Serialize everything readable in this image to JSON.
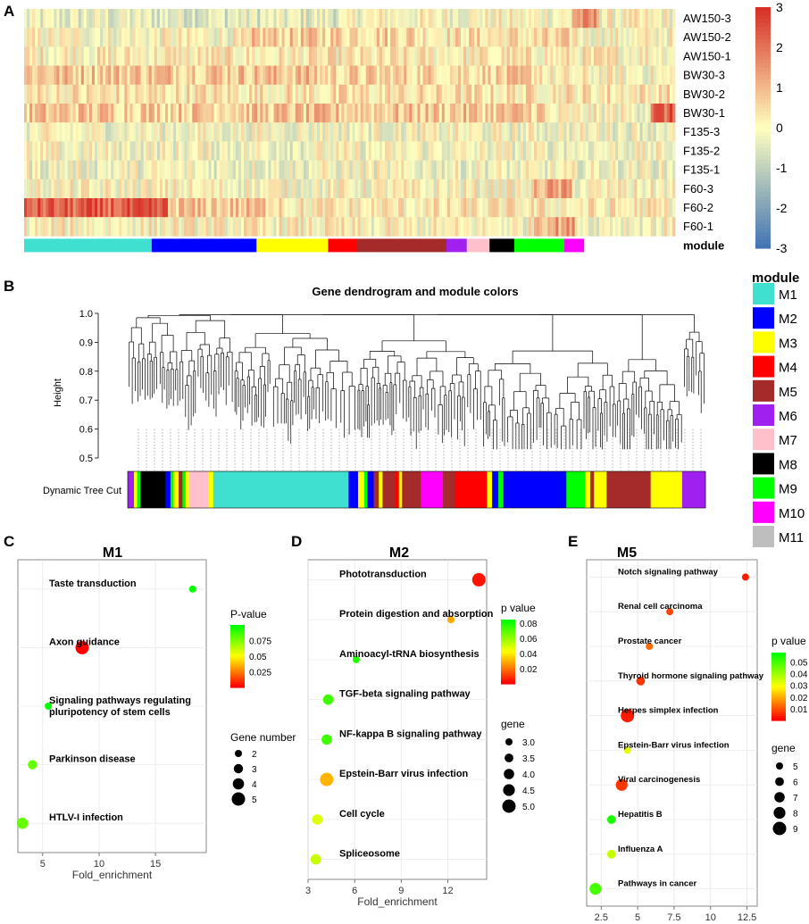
{
  "panel_labels": [
    "A",
    "B",
    "C",
    "D",
    "E"
  ],
  "colors": {
    "M1": "#40E0D0",
    "M2": "#0000FF",
    "M3": "#FFFF00",
    "M4": "#FF0000",
    "M5": "#A52A2A",
    "M6": "#A020F0",
    "M7": "#FFC0CB",
    "M8": "#000000",
    "M9": "#00FF00",
    "M10": "#FF00FF",
    "M11": "#BEBEBE",
    "heat_low": "#4575b4",
    "heat_mid": "#ffffbf",
    "heat_high": "#d73027",
    "pv_high": "#00FF00",
    "pv_low": "#FF0000"
  },
  "chart_data": [
    {
      "id": "A",
      "type": "heatmap",
      "rows": [
        "AW150-3",
        "AW150-2",
        "AW150-1",
        "BW30-3",
        "BW30-2",
        "BW30-1",
        "F135-3",
        "F135-2",
        "F135-1",
        "F60-3",
        "F60-2",
        "F60-1"
      ],
      "module_row_label": "module",
      "module_bar": [
        {
          "module": "M1",
          "share": 0.196
        },
        {
          "module": "M2",
          "share": 0.161
        },
        {
          "module": "M3",
          "share": 0.11
        },
        {
          "module": "M4",
          "share": 0.044
        },
        {
          "module": "M5",
          "share": 0.138
        },
        {
          "module": "M6",
          "share": 0.031
        },
        {
          "module": "M7",
          "share": 0.035
        },
        {
          "module": "M8",
          "share": 0.038
        },
        {
          "module": "M9",
          "share": 0.077
        },
        {
          "module": "M10",
          "share": 0.03
        }
      ],
      "colorbar_ticks": [
        "3",
        "2",
        "1",
        "0",
        "-1",
        "-2",
        "-3"
      ],
      "colorbar_range": [
        -3,
        3
      ]
    },
    {
      "id": "B",
      "type": "dendrogram",
      "title": "Gene dendrogram and module colors",
      "ylabel": "Height",
      "yticks": [
        "1.0",
        "0.9",
        "0.8",
        "0.7",
        "0.6",
        "0.5"
      ],
      "ylim": [
        0.5,
        1.0
      ],
      "color_row_label": "Dynamic Tree Cut",
      "legend_title": "module",
      "legend": [
        "M1",
        "M2",
        "M3",
        "M4",
        "M5",
        "M6",
        "M7",
        "M8",
        "M9",
        "M10",
        "M11"
      ],
      "color_bar": [
        {
          "module": "M6",
          "share": 0.01
        },
        {
          "module": "M3",
          "share": 0.005
        },
        {
          "module": "M9",
          "share": 0.005
        },
        {
          "module": "M8",
          "share": 0.04
        },
        {
          "module": "M2",
          "share": 0.008
        },
        {
          "module": "M9",
          "share": 0.005
        },
        {
          "module": "M3",
          "share": 0.008
        },
        {
          "module": "M5",
          "share": 0.006
        },
        {
          "module": "M9",
          "share": 0.005
        },
        {
          "module": "M3",
          "share": 0.006
        },
        {
          "module": "M7",
          "share": 0.03
        },
        {
          "module": "M3",
          "share": 0.008
        },
        {
          "module": "M1",
          "share": 0.215
        },
        {
          "module": "M2",
          "share": 0.015
        },
        {
          "module": "M3",
          "share": 0.01
        },
        {
          "module": "M9",
          "share": 0.005
        },
        {
          "module": "M2",
          "share": 0.01
        },
        {
          "module": "M5",
          "share": 0.008
        },
        {
          "module": "M3",
          "share": 0.006
        },
        {
          "module": "M5",
          "share": 0.02
        },
        {
          "module": "M4",
          "share": 0.006
        },
        {
          "module": "M3",
          "share": 0.005
        },
        {
          "module": "M5",
          "share": 0.03
        },
        {
          "module": "M10",
          "share": 0.035
        },
        {
          "module": "M5",
          "share": 0.02
        },
        {
          "module": "M4",
          "share": 0.05
        },
        {
          "module": "M3",
          "share": 0.008
        },
        {
          "module": "M2",
          "share": 0.01
        },
        {
          "module": "M9",
          "share": 0.008
        },
        {
          "module": "M2",
          "share": 0.1
        },
        {
          "module": "M9",
          "share": 0.03
        },
        {
          "module": "M3",
          "share": 0.008
        },
        {
          "module": "M5",
          "share": 0.006
        },
        {
          "module": "M3",
          "share": 0.02
        },
        {
          "module": "M5",
          "share": 0.07
        },
        {
          "module": "M3",
          "share": 0.05
        },
        {
          "module": "M6",
          "share": 0.037
        }
      ]
    },
    {
      "id": "C",
      "type": "scatter",
      "title": "M1",
      "xlabel": "Fold_enrichment",
      "xlim": [
        2.8,
        19.5
      ],
      "xticks": [
        5,
        10,
        15
      ],
      "terms": [
        "Taste transduction",
        "Axon guidance",
        "Signaling pathways regulating pluripotency of stem cells",
        "Parkinson disease",
        "HTLV-I infection"
      ],
      "fold": [
        18.3,
        8.5,
        5.5,
        4.1,
        3.2
      ],
      "pvalue": [
        0.1,
        0.0,
        0.1,
        0.08,
        0.08
      ],
      "gene": [
        2,
        5,
        2,
        3,
        4
      ],
      "color_title": "P-value",
      "color_ticks": [
        0.025,
        0.05,
        0.075
      ],
      "color_range": [
        0.0,
        0.1
      ],
      "size_title": "Gene number",
      "size_ticks": [
        2,
        3,
        4,
        5
      ]
    },
    {
      "id": "D",
      "type": "scatter",
      "title": "M2",
      "xlabel": "Fold_enrichment",
      "xlim": [
        3,
        14.5
      ],
      "xticks": [
        3,
        6,
        9,
        12
      ],
      "terms": [
        "Phototransduction",
        "Protein digestion and absorption",
        "Aminoacyl-tRNA biosynthesis",
        "TGF-beta signaling pathway",
        "NF-kappa B signaling pathway",
        "Epstein-Barr virus infection",
        "Cell cycle",
        "Spliceosome"
      ],
      "fold": [
        14.0,
        12.2,
        6.1,
        4.3,
        4.2,
        4.2,
        3.6,
        3.5
      ],
      "pvalue": [
        0.003,
        0.028,
        0.08,
        0.075,
        0.075,
        0.03,
        0.048,
        0.052
      ],
      "gene": [
        5,
        3,
        3,
        4,
        4,
        5,
        4,
        4
      ],
      "color_title": "p value",
      "color_ticks": [
        0.02,
        0.04,
        0.06,
        0.08
      ],
      "color_range": [
        0.0,
        0.085
      ],
      "size_title": "gene",
      "size_ticks": [
        3.0,
        3.5,
        4.0,
        4.5,
        5.0
      ]
    },
    {
      "id": "E",
      "type": "scatter",
      "title": "M5",
      "xlabel": "Fold_enrichment",
      "xlim": [
        1.5,
        13.2
      ],
      "xticks": [
        2.5,
        5.0,
        7.5,
        10.0,
        12.5
      ],
      "terms": [
        "Notch signaling pathway",
        "Renal cell carcinoma",
        "Prostate cancer",
        "Thyroid hormone signaling pathway",
        "Herpes simplex infection",
        "Epstein-Barr virus infection",
        "Viral carcinogenesis",
        "Hepatitis B",
        "Influenza A",
        "Pathways in cancer"
      ],
      "fold": [
        12.4,
        7.2,
        5.8,
        5.2,
        4.3,
        4.3,
        3.9,
        3.2,
        3.2,
        2.1
      ],
      "pvalue": [
        0.003,
        0.008,
        0.012,
        0.006,
        0.003,
        0.032,
        0.006,
        0.055,
        0.036,
        0.05
      ],
      "gene": [
        5,
        5,
        5,
        6,
        9,
        5,
        8,
        6,
        6,
        8
      ],
      "color_title": "p value",
      "color_ticks": [
        0.01,
        0.02,
        0.03,
        0.04,
        0.05
      ],
      "color_range": [
        0.0,
        0.058
      ],
      "size_title": "gene",
      "size_ticks": [
        5,
        6,
        7,
        8,
        9
      ]
    }
  ]
}
